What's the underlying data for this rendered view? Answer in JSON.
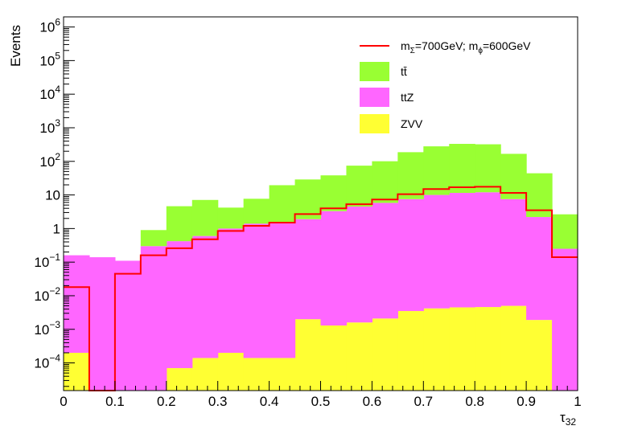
{
  "chart_data": {
    "type": "bar",
    "stacked": true,
    "log_y": true,
    "xlabel": "τ",
    "xlabel_sub": "32",
    "ylabel": "Events",
    "xlim": [
      0,
      1
    ],
    "ylim": [
      1.5e-05,
      2000000
    ],
    "bin_edges": [
      0,
      0.05,
      0.1,
      0.15,
      0.2,
      0.25,
      0.3,
      0.35,
      0.4,
      0.45,
      0.5,
      0.55,
      0.6,
      0.65,
      0.7,
      0.75,
      0.8,
      0.85,
      0.9,
      0.95,
      1.0
    ],
    "x_ticks": [
      "0",
      "0.1",
      "0.2",
      "0.3",
      "0.4",
      "0.5",
      "0.6",
      "0.7",
      "0.8",
      "0.9",
      "1"
    ],
    "y_ticks": [
      {
        "base": "10",
        "exp": "−4",
        "value": 0.0001
      },
      {
        "base": "10",
        "exp": "−3",
        "value": 0.001
      },
      {
        "base": "10",
        "exp": "−2",
        "value": 0.01
      },
      {
        "base": "10",
        "exp": "−1",
        "value": 0.1
      },
      {
        "base": "1",
        "exp": "",
        "value": 1
      },
      {
        "base": "10",
        "exp": "",
        "value": 10
      },
      {
        "base": "10",
        "exp": "2",
        "value": 100
      },
      {
        "base": "10",
        "exp": "3",
        "value": 1000
      },
      {
        "base": "10",
        "exp": "4",
        "value": 10000
      },
      {
        "base": "10",
        "exp": "5",
        "value": 100000
      },
      {
        "base": "10",
        "exp": "6",
        "value": 1000000
      }
    ],
    "stack": [
      {
        "name": "ZVV",
        "color": "#ffff33",
        "values": [
          0.0002,
          0,
          0,
          0,
          7e-05,
          0.00014,
          0.0002,
          0.00014,
          0.00014,
          0.002,
          0.0013,
          0.0016,
          0.0021,
          0.0035,
          0.0042,
          0.0045,
          0.0046,
          0.005,
          0.0019,
          0
        ]
      },
      {
        "name": "ttZ",
        "color": "#ff66ff",
        "values": [
          0.16,
          0.14,
          0.11,
          0.3,
          0.42,
          0.6,
          1.0,
          1.4,
          1.5,
          1.9,
          3.3,
          4.5,
          5.8,
          7.5,
          10,
          11.5,
          12,
          7.5,
          2.2,
          0.25
        ]
      },
      {
        "name": "tt̄",
        "color": "#99ff33",
        "values": [
          0,
          0,
          0,
          0.6,
          4.2,
          6.5,
          3.2,
          6.3,
          18,
          27,
          35,
          70,
          95,
          180,
          270,
          320,
          310,
          160,
          42,
          2.4
        ]
      }
    ],
    "signal": {
      "color": "#ff0000",
      "values": [
        0.018,
        1e-06,
        0.045,
        0.16,
        0.26,
        0.48,
        0.85,
        1.2,
        1.5,
        2.7,
        4.0,
        5.3,
        7.3,
        10.5,
        15,
        17,
        17.5,
        11.5,
        3.5,
        0.14
      ]
    },
    "legend": {
      "position": "top-right",
      "entries": [
        {
          "kind": "line",
          "color": "#ff0000",
          "parts": [
            "m",
            "Σ",
            "=700GeV; m",
            "ϕ",
            "=600GeV"
          ]
        },
        {
          "kind": "box",
          "color": "#99ff33",
          "label": "tt̄"
        },
        {
          "kind": "box",
          "color": "#ff66ff",
          "label": "ttZ"
        },
        {
          "kind": "box",
          "color": "#ffff33",
          "label": "ZVV"
        }
      ]
    }
  }
}
